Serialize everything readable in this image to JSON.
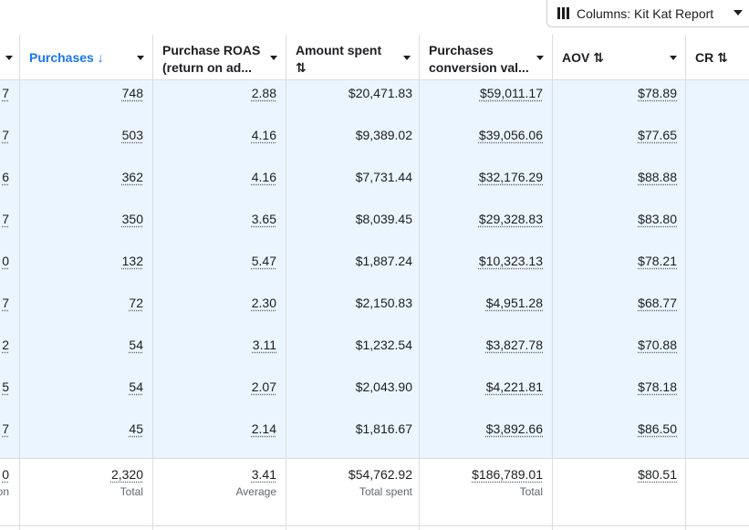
{
  "toolbar": {
    "columns_label": "Columns: Kit Kat Report"
  },
  "columns": [
    {
      "id": "prev",
      "label": ""
    },
    {
      "id": "purchases",
      "label": "Purchases",
      "sort": "↓",
      "active": true
    },
    {
      "id": "roas",
      "label_line1": "Purchase ROAS",
      "label_line2": "(return on ad..."
    },
    {
      "id": "spent",
      "label_line1": "Amount spent",
      "label_line2": "⇅"
    },
    {
      "id": "conv",
      "label_line1": "Purchases",
      "label_line2": "conversion val..."
    },
    {
      "id": "aov",
      "label": "AOV ⇅"
    },
    {
      "id": "cr",
      "label": "CR ⇅"
    }
  ],
  "rows": [
    {
      "prev": "7",
      "purchases": "748",
      "roas": "2.88",
      "spent": "$20,471.83",
      "conv": "$59,011.17",
      "aov": "$78.89"
    },
    {
      "prev": "7",
      "purchases": "503",
      "roas": "4.16",
      "spent": "$9,389.02",
      "conv": "$39,056.06",
      "aov": "$77.65"
    },
    {
      "prev": "6",
      "purchases": "362",
      "roas": "4.16",
      "spent": "$7,731.44",
      "conv": "$32,176.29",
      "aov": "$88.88"
    },
    {
      "prev": "7",
      "purchases": "350",
      "roas": "3.65",
      "spent": "$8,039.45",
      "conv": "$29,328.83",
      "aov": "$83.80"
    },
    {
      "prev": "0",
      "purchases": "132",
      "roas": "5.47",
      "spent": "$1,887.24",
      "conv": "$10,323.13",
      "aov": "$78.21"
    },
    {
      "prev": "7",
      "purchases": "72",
      "roas": "2.30",
      "spent": "$2,150.83",
      "conv": "$4,951.28",
      "aov": "$68.77"
    },
    {
      "prev": "2",
      "purchases": "54",
      "roas": "3.11",
      "spent": "$1,232.54",
      "conv": "$3,827.78",
      "aov": "$70.88"
    },
    {
      "prev": "5",
      "purchases": "54",
      "roas": "2.07",
      "spent": "$2,043.90",
      "conv": "$4,221.81",
      "aov": "$78.18"
    },
    {
      "prev": "7",
      "purchases": "45",
      "roas": "2.14",
      "spent": "$1,816.67",
      "conv": "$3,892.66",
      "aov": "$86.50"
    }
  ],
  "totals": {
    "prev": {
      "value": "0",
      "sub": "on"
    },
    "purchases": {
      "value": "2,320",
      "sub": "Total"
    },
    "roas": {
      "value": "3.41",
      "sub": "Average"
    },
    "spent": {
      "value": "$54,762.92",
      "sub": "Total spent"
    },
    "conv": {
      "value": "$186,789.01",
      "sub": "Total"
    },
    "aov": {
      "value": "$80.51",
      "sub": ""
    }
  }
}
